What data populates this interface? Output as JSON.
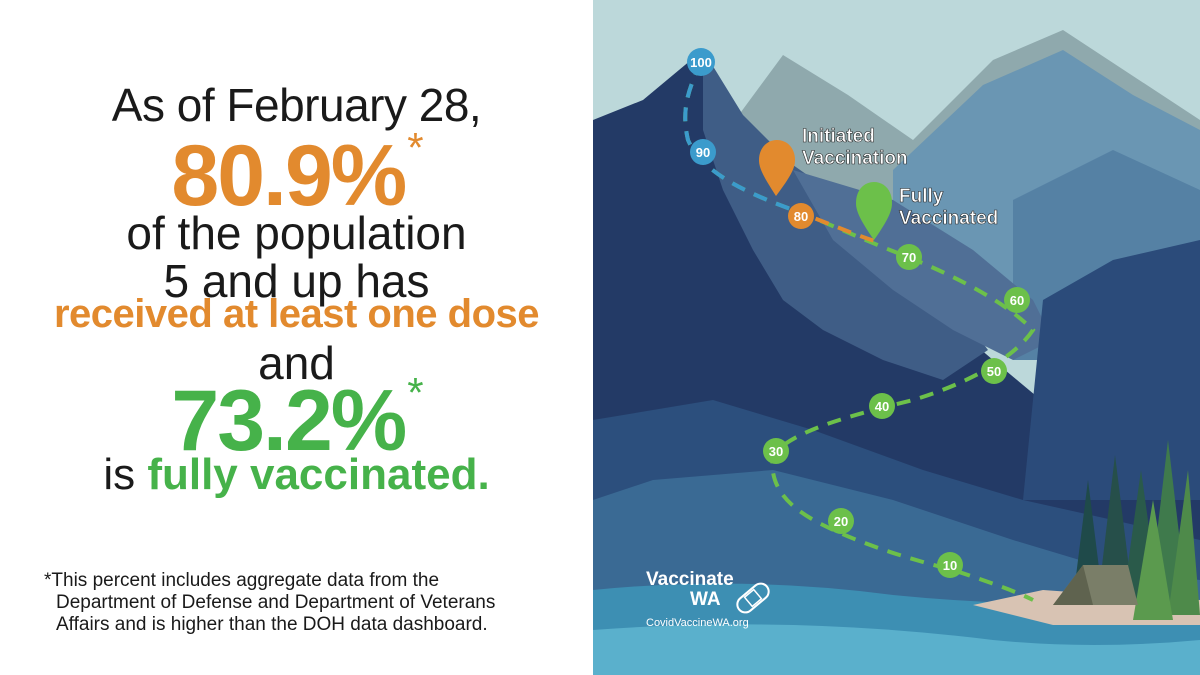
{
  "headline": {
    "as_of": "As of February 28,",
    "initiated_pct": "80.9%",
    "asterisk": "*",
    "population_line1": "of the population",
    "population_line2": "5 and up has",
    "received": "received at least one dose",
    "and": "and",
    "fully_pct": "73.2%",
    "is_text": "is ",
    "fully_text": "fully vaccinated."
  },
  "footnote": {
    "line1": "*This percent includes aggregate data from the",
    "line2": "Department of Defense and Department of Veterans",
    "line3": "Affairs and is higher than the DOH data dashboard."
  },
  "trail": {
    "markers": [
      "100",
      "90",
      "80",
      "70",
      "60",
      "50",
      "40",
      "30",
      "20",
      "10"
    ],
    "initiated_label_1": "Initiated",
    "initiated_label_2": "Vaccination",
    "fully_label_1": "Fully",
    "fully_label_2": "Vaccinated"
  },
  "logo": {
    "title": "Vaccinate",
    "wa": "WA",
    "url": "CovidVaccineWA.org"
  },
  "colors": {
    "orange": "#e28a2e",
    "green": "#46b24a",
    "blue_marker": "#3b9bcc",
    "sky": "#b8d6d8",
    "lake": "#3d8fb3"
  }
}
